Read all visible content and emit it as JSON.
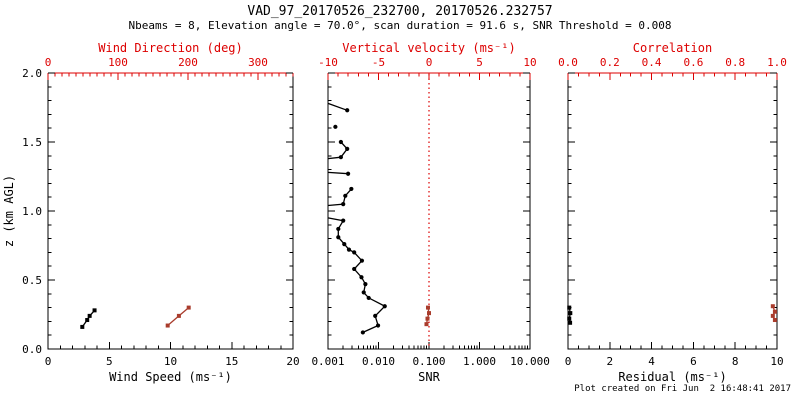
{
  "title": "VAD_97_20170526_232700, 20170526.232757",
  "subtitle": "Nbeams = 8, Elevation angle = 70.0°, scan duration = 91.6 s, SNR Threshold = 0.008",
  "footer": "Plot created on Fri Jun  2 16:48:41 2017",
  "colors": {
    "background": "#ffffff",
    "frame_black": "#000000",
    "axis_red": "#dd0000",
    "marker_red": "#a93c2c",
    "marker_black": "#000000"
  },
  "chart_data": [
    {
      "type": "scatter",
      "name": "wind-speed-and-direction",
      "ylabel": "z (km AGL)",
      "ylim": [
        0,
        2
      ],
      "yticks": [
        0,
        0.5,
        1,
        1.5,
        2
      ],
      "ytick_labels": [
        "0.0",
        "0.5",
        "1.0",
        "1.5",
        "2.0"
      ],
      "y_minor_step": 0.1,
      "bottom_axis": {
        "label": "Wind Speed (ms⁻¹)",
        "lim": [
          0,
          20
        ],
        "ticks": [
          {
            "v": 0,
            "l": "0"
          },
          {
            "v": 5,
            "l": "5"
          },
          {
            "v": 10,
            "l": "10"
          },
          {
            "v": 15,
            "l": "15"
          },
          {
            "v": 20,
            "l": "20"
          }
        ],
        "minor_step": 1,
        "color": "#000000"
      },
      "top_axis": {
        "label": "Wind Direction (deg)",
        "lim": [
          0,
          350
        ],
        "ticks": [
          {
            "v": 0,
            "l": "0"
          },
          {
            "v": 100,
            "l": "100"
          },
          {
            "v": 200,
            "l": "200"
          },
          {
            "v": 300,
            "l": "300"
          }
        ],
        "minor_step": 10,
        "color": "#dd0000"
      },
      "series": [
        {
          "name": "wind_speed",
          "axis": "bottom",
          "color": "#000000",
          "marker": "square",
          "points": [
            [
              2.8,
              0.16
            ],
            [
              3.2,
              0.21
            ],
            [
              3.4,
              0.24
            ],
            [
              3.8,
              0.28
            ]
          ]
        },
        {
          "name": "wind_direction",
          "axis": "top",
          "color": "#a93c2c",
          "marker": "square",
          "points": [
            [
              171,
              0.17
            ],
            [
              187,
              0.24
            ],
            [
              201,
              0.3
            ]
          ]
        }
      ]
    },
    {
      "type": "scatter",
      "name": "snr-and-vertical-velocity",
      "ylim": [
        0,
        2
      ],
      "yticks": [
        0,
        0.5,
        1,
        1.5,
        2
      ],
      "y_minor_step": 0.1,
      "bottom_axis": {
        "label": "SNR",
        "scale": "log",
        "lim": [
          0.001,
          10
        ],
        "ticks": [
          {
            "v": 0.001,
            "l": "0.001"
          },
          {
            "v": 0.01,
            "l": "0.010"
          },
          {
            "v": 0.1,
            "l": "0.100"
          },
          {
            "v": 1,
            "l": "1.000"
          },
          {
            "v": 10,
            "l": "10.000"
          }
        ],
        "color": "#000000"
      },
      "top_axis": {
        "label": "Vertical velocity (ms⁻¹)",
        "lim": [
          -10,
          10
        ],
        "ticks": [
          {
            "v": -10,
            "l": "-10"
          },
          {
            "v": -5,
            "l": "-5"
          },
          {
            "v": 0,
            "l": "0"
          },
          {
            "v": 5,
            "l": "5"
          },
          {
            "v": 10,
            "l": "10"
          }
        ],
        "minor_step": 1,
        "color": "#dd0000"
      },
      "ref_line": {
        "axis": "top",
        "value": 0,
        "style": "dotted",
        "color": "#dd0000"
      },
      "series": [
        {
          "name": "snr_profile",
          "axis": "bottom",
          "color": "#000000",
          "marker": "circle",
          "segments": [
            [
              [
                0.001,
                1.78,
                0
              ],
              [
                0.0024,
                1.73,
                1
              ]
            ],
            [
              [
                0.0014,
                1.61,
                1
              ]
            ],
            [
              [
                0.0018,
                1.5,
                1
              ],
              [
                0.0024,
                1.45,
                1
              ],
              [
                0.0018,
                1.39,
                1
              ],
              [
                0.001,
                1.38,
                0
              ]
            ],
            [
              [
                0.001,
                1.28,
                0
              ],
              [
                0.0025,
                1.27,
                1
              ]
            ],
            [
              [
                0.0029,
                1.16,
                1
              ],
              [
                0.0022,
                1.11,
                1
              ],
              [
                0.002,
                1.05,
                1
              ],
              [
                0.001,
                1.04,
                0
              ]
            ],
            [
              [
                0.001,
                0.95,
                0
              ],
              [
                0.002,
                0.93,
                1
              ],
              [
                0.0016,
                0.87,
                1
              ],
              [
                0.0016,
                0.81,
                1
              ],
              [
                0.0021,
                0.76,
                1
              ],
              [
                0.0026,
                0.72,
                1
              ],
              [
                0.0033,
                0.7,
                1
              ],
              [
                0.0047,
                0.64,
                1
              ],
              [
                0.0033,
                0.58,
                1
              ],
              [
                0.0046,
                0.52,
                1
              ],
              [
                0.0055,
                0.47,
                1
              ],
              [
                0.0051,
                0.41,
                1
              ],
              [
                0.0064,
                0.37,
                1
              ],
              [
                0.0133,
                0.31,
                1
              ],
              [
                0.0086,
                0.24,
                1
              ],
              [
                0.0098,
                0.17,
                1
              ],
              [
                0.0049,
                0.12,
                1
              ]
            ]
          ]
        },
        {
          "name": "vertical_velocity",
          "axis": "top",
          "color": "#a93c2c",
          "marker": "square",
          "points": [
            [
              -0.1,
              0.3
            ],
            [
              0.0,
              0.26
            ],
            [
              -0.15,
              0.22
            ],
            [
              -0.25,
              0.18
            ]
          ]
        }
      ]
    },
    {
      "type": "scatter",
      "name": "residual-and-correlation",
      "ylim": [
        0,
        2
      ],
      "yticks": [
        0,
        0.5,
        1,
        1.5,
        2
      ],
      "y_minor_step": 0.1,
      "bottom_axis": {
        "label": "Residual (ms⁻¹)",
        "lim": [
          0,
          10
        ],
        "ticks": [
          {
            "v": 0,
            "l": "0"
          },
          {
            "v": 2,
            "l": "2"
          },
          {
            "v": 4,
            "l": "4"
          },
          {
            "v": 6,
            "l": "6"
          },
          {
            "v": 8,
            "l": "8"
          },
          {
            "v": 10,
            "l": "10"
          }
        ],
        "minor_step": 0.5,
        "color": "#000000"
      },
      "top_axis": {
        "label": "Correlation",
        "lim": [
          0,
          1
        ],
        "ticks": [
          {
            "v": 0,
            "l": "0.0"
          },
          {
            "v": 0.2,
            "l": "0.2"
          },
          {
            "v": 0.4,
            "l": "0.4"
          },
          {
            "v": 0.6,
            "l": "0.6"
          },
          {
            "v": 0.8,
            "l": "0.8"
          },
          {
            "v": 1,
            "l": "1.0"
          }
        ],
        "minor_step": 0.05,
        "color": "#dd0000"
      },
      "series": [
        {
          "name": "residual",
          "axis": "bottom",
          "color": "#000000",
          "marker": "square",
          "points": [
            [
              0.06,
              0.3
            ],
            [
              0.11,
              0.26
            ],
            [
              0.06,
              0.22
            ],
            [
              0.1,
              0.19
            ]
          ]
        },
        {
          "name": "correlation",
          "axis": "top",
          "color": "#a93c2c",
          "marker": "square",
          "points": [
            [
              0.98,
              0.31
            ],
            [
              0.99,
              0.27
            ],
            [
              0.98,
              0.24
            ],
            [
              0.99,
              0.21
            ]
          ]
        }
      ]
    }
  ]
}
